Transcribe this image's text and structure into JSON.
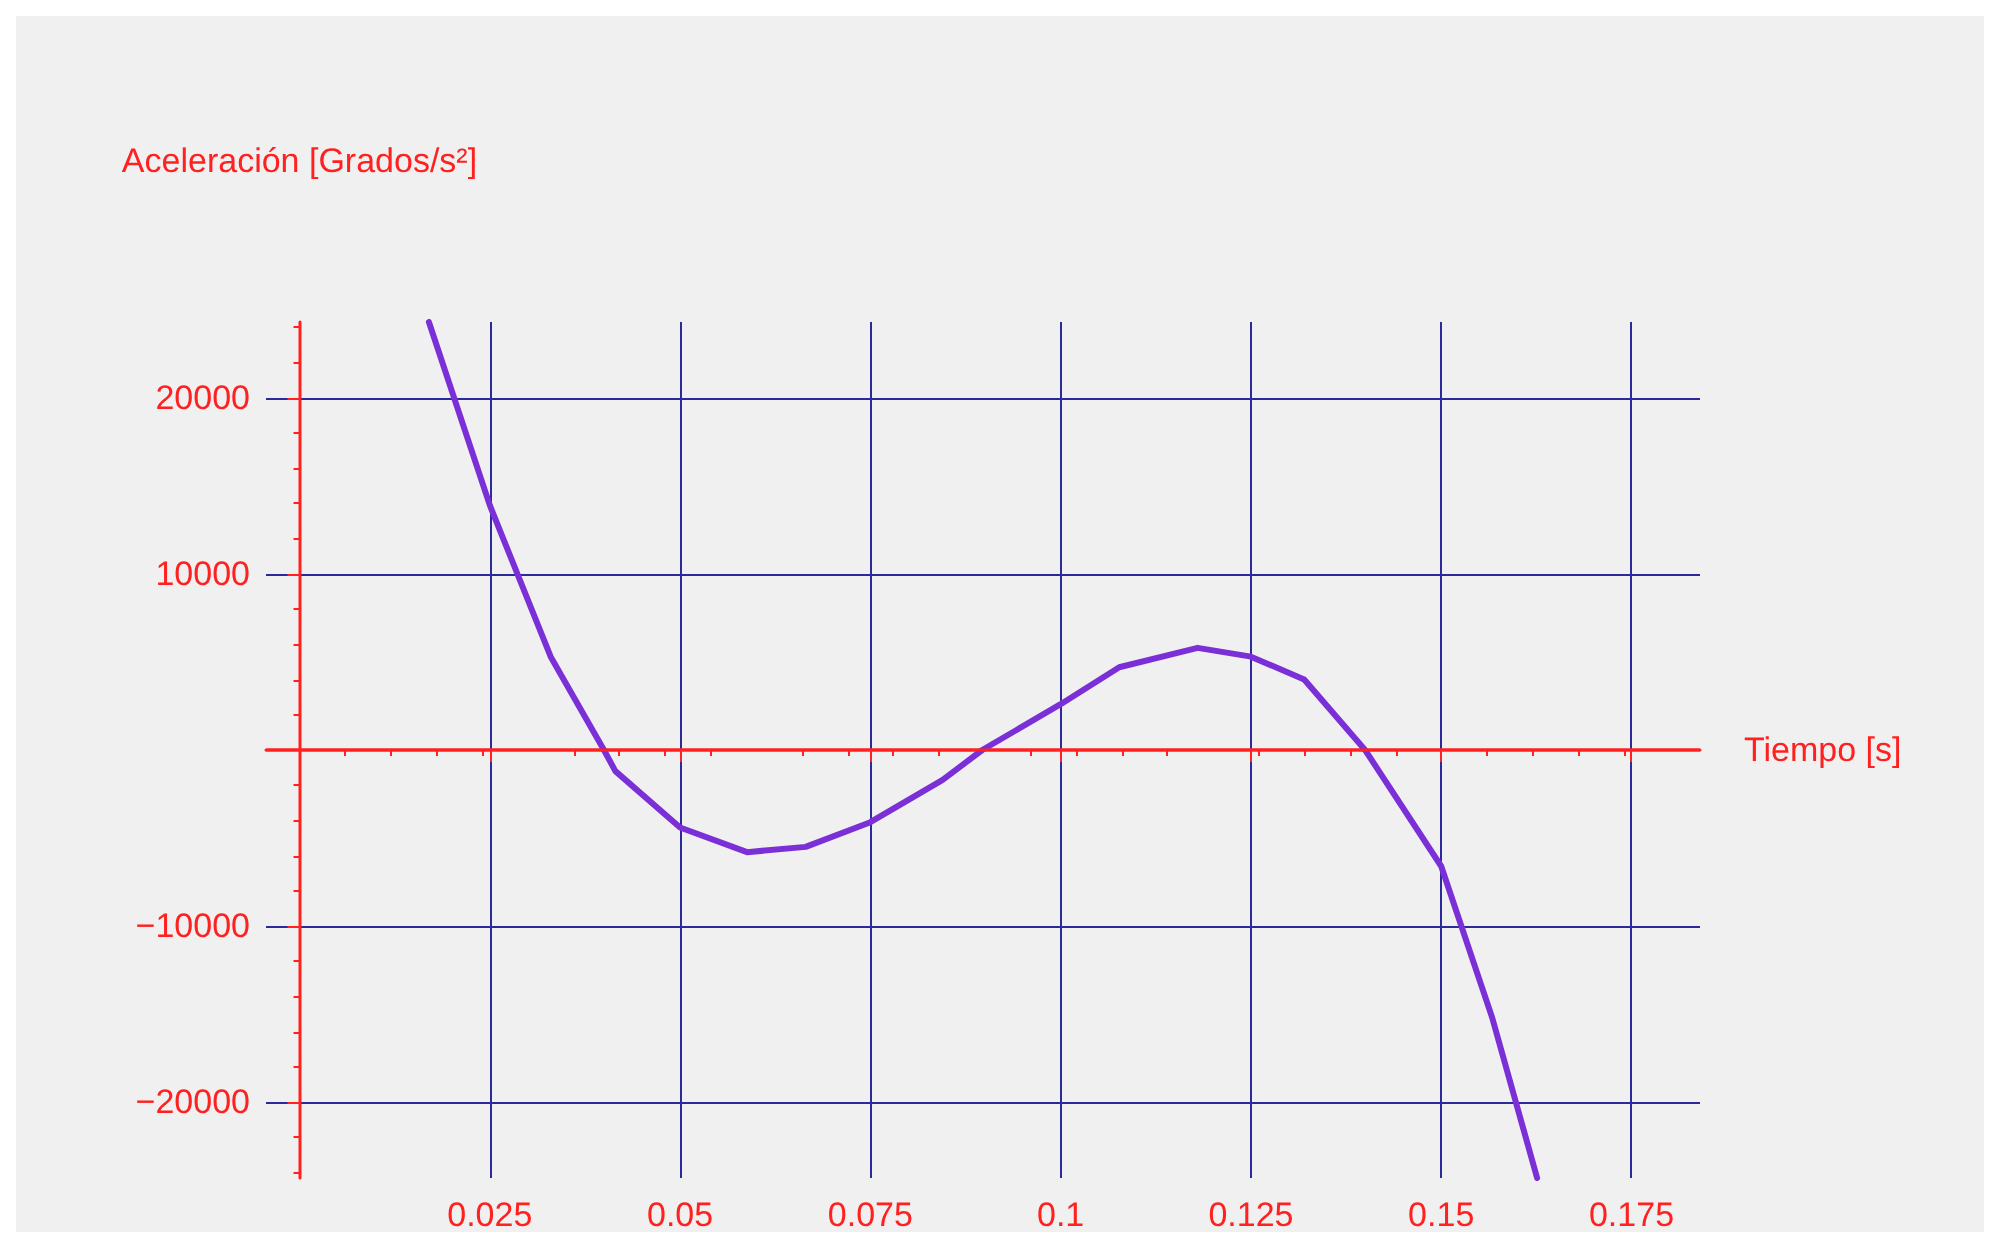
{
  "chart_data": {
    "type": "line",
    "xlabel": "Tiempo [s]",
    "ylabel": "Aceleración [Grados/s²]",
    "x": [
      0.017,
      0.025,
      0.033,
      0.04,
      0.0415,
      0.05,
      0.0588,
      0.0665,
      0.075,
      0.0845,
      0.0897,
      0.1,
      0.1077,
      0.118,
      0.125,
      0.132,
      0.14,
      0.15,
      0.1567,
      0.1626
    ],
    "series": [
      {
        "color": "#7b2fd6",
        "values": [
          24300,
          13900,
          5300,
          0,
          -1200,
          -4400,
          -5800,
          -5500,
          -4100,
          -1700,
          0,
          2600,
          4700,
          5800,
          5300,
          4000,
          0,
          -6600,
          -15200,
          -24300
        ]
      }
    ],
    "ref_lines": [
      {
        "axis": "y",
        "value": 0,
        "color": "#ff2020"
      }
    ],
    "xlim": [
      -0.0044,
      0.184
    ],
    "xticks": [
      0.025,
      0.05,
      0.075,
      0.1,
      0.125,
      0.15,
      0.175
    ],
    "ylim": [
      -24300,
      24300
    ],
    "yticks": [
      -20000,
      -10000,
      10000,
      20000
    ],
    "grid": true
  }
}
